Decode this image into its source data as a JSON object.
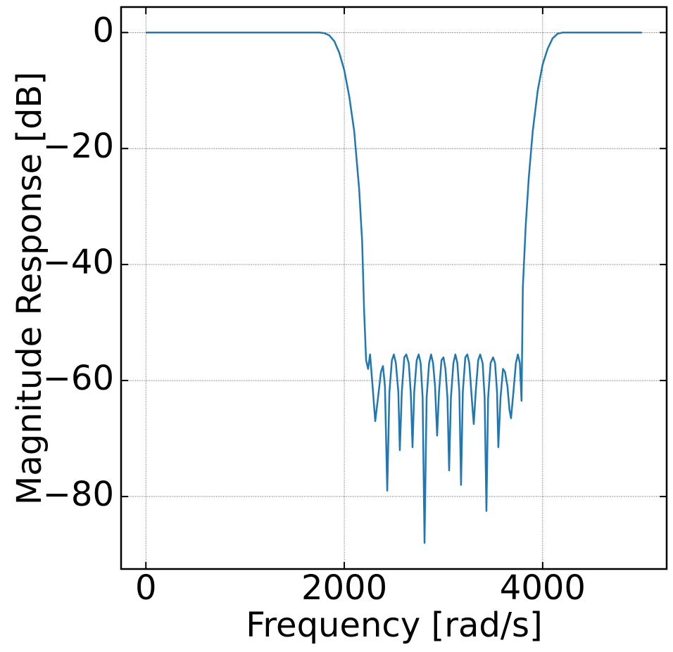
{
  "chart_data": {
    "type": "line",
    "xlabel": "Frequency [rad/s]",
    "ylabel": "Magnitude Response [dB]",
    "xlim": [
      -250,
      5250
    ],
    "ylim": [
      -92.5,
      4.4
    ],
    "xticks": [
      0,
      2000,
      4000
    ],
    "yticks": [
      0,
      {
        "value": -20,
        "label": "−20"
      },
      {
        "value": -40,
        "label": "−40"
      },
      {
        "value": -60,
        "label": "−60"
      },
      {
        "value": -80,
        "label": "−80"
      }
    ],
    "grid": true,
    "x": [
      0,
      500,
      1000,
      1500,
      1750,
      1800,
      1850,
      1900,
      1950,
      2000,
      2050,
      2100,
      2150,
      2180,
      2200,
      2220,
      2240,
      2260,
      2290,
      2312,
      2340,
      2370,
      2390,
      2410,
      2433,
      2455,
      2480,
      2500,
      2520,
      2545,
      2560,
      2580,
      2605,
      2625,
      2650,
      2670,
      2688,
      2705,
      2730,
      2750,
      2770,
      2790,
      2809,
      2830,
      2855,
      2875,
      2895,
      2915,
      2936,
      2955,
      2980,
      3000,
      3020,
      3040,
      3057,
      3075,
      3100,
      3120,
      3140,
      3160,
      3177,
      3195,
      3220,
      3240,
      3260,
      3285,
      3305,
      3325,
      3350,
      3370,
      3395,
      3415,
      3433,
      3450,
      3475,
      3500,
      3520,
      3540,
      3553,
      3575,
      3600,
      3620,
      3645,
      3665,
      3681,
      3705,
      3730,
      3750,
      3770,
      3787,
      3800,
      3830,
      3860,
      3900,
      3950,
      4000,
      4050,
      4100,
      4150,
      4200,
      4500,
      5000
    ],
    "series": [
      {
        "color": "#1f77b4",
        "values": [
          0,
          0,
          0,
          0,
          0,
          -0.1,
          -0.5,
          -1.5,
          -3.5,
          -6.5,
          -11,
          -17,
          -27,
          -36,
          -48,
          -56.5,
          -58,
          -55.5,
          -62,
          -67,
          -63,
          -58.5,
          -57.5,
          -61,
          -79,
          -62,
          -56.5,
          -55.5,
          -57,
          -62,
          -72,
          -62,
          -56,
          -55.5,
          -57,
          -62,
          -71.5,
          -62,
          -56.5,
          -55.5,
          -57,
          -63,
          -88,
          -63,
          -57,
          -55.5,
          -57,
          -61,
          -69.5,
          -62,
          -56.5,
          -56,
          -58,
          -63,
          -75.5,
          -63,
          -57,
          -55.5,
          -57,
          -62,
          -78,
          -62,
          -56,
          -55.5,
          -57,
          -63,
          -67.5,
          -62,
          -56.5,
          -55.5,
          -57,
          -63,
          -82.5,
          -63,
          -57,
          -56,
          -57,
          -62,
          -71.5,
          -63,
          -58,
          -58.5,
          -61,
          -65,
          -66.5,
          -62,
          -57,
          -55.5,
          -57,
          -63.5,
          -44,
          -33,
          -25,
          -17,
          -10,
          -5.5,
          -2.8,
          -1,
          -0.2,
          0,
          0,
          0
        ]
      }
    ]
  }
}
